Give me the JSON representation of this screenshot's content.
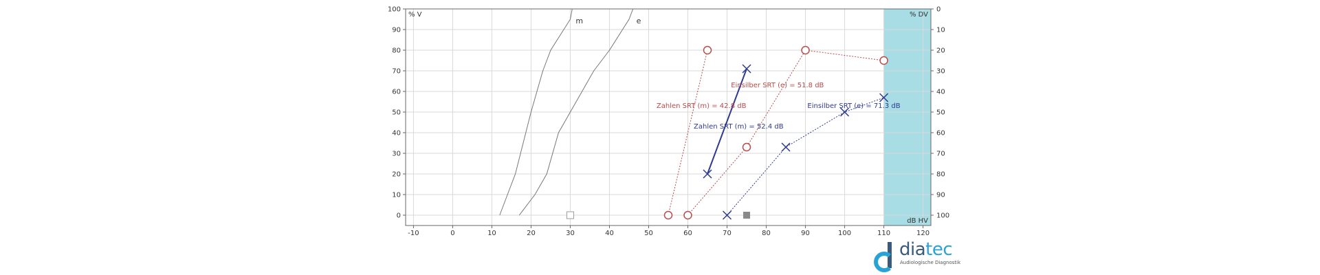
{
  "chart_data": {
    "type": "scatter",
    "title": "",
    "xlabel": "dB HV",
    "xlim": [
      -12,
      122
    ],
    "x_ticks": [
      -10,
      0,
      10,
      20,
      30,
      40,
      50,
      60,
      70,
      80,
      90,
      100,
      110,
      120
    ],
    "left_axis": {
      "label": "% V",
      "ylim": [
        -5,
        100
      ],
      "ticks": [
        0,
        10,
        20,
        30,
        40,
        50,
        60,
        70,
        80,
        90,
        100
      ]
    },
    "right_axis": {
      "label": "% DV",
      "ticks": [
        0,
        10,
        20,
        30,
        40,
        50,
        60,
        70,
        80,
        90,
        100
      ]
    },
    "grid": true,
    "shaded_region": {
      "x_from": 110,
      "x_to": 122,
      "color": "#a8dde6"
    },
    "reference_curves": [
      {
        "name": "m",
        "points": [
          [
            12,
            0
          ],
          [
            14,
            10
          ],
          [
            16,
            20
          ],
          [
            18,
            35
          ],
          [
            20,
            50
          ],
          [
            23,
            70
          ],
          [
            25,
            80
          ],
          [
            30,
            95
          ],
          [
            30.5,
            100
          ]
        ]
      },
      {
        "name": "e",
        "points": [
          [
            17,
            0
          ],
          [
            21,
            10
          ],
          [
            24,
            20
          ],
          [
            27,
            40
          ],
          [
            30,
            50
          ],
          [
            33,
            60
          ],
          [
            36,
            70
          ],
          [
            40,
            80
          ],
          [
            45,
            95
          ],
          [
            46,
            100
          ]
        ]
      }
    ],
    "series": [
      {
        "name": "Zahlen SRT (m) = 42.8 dB",
        "marker": "circle",
        "color": "#b84a4a",
        "line": "dotted",
        "points": [
          [
            55,
            0
          ],
          [
            65,
            80
          ]
        ]
      },
      {
        "name": "Einsilber SRT (e) = 51.8 dB",
        "marker": "circle",
        "color": "#b84a4a",
        "line": "dotted",
        "points": [
          [
            60,
            0
          ],
          [
            75,
            33
          ],
          [
            90,
            80
          ],
          [
            110,
            75
          ]
        ]
      },
      {
        "name": "Zahlen SRT (m) = 52.4 dB",
        "marker": "cross",
        "color": "#2e3a8c",
        "line": "solid",
        "points": [
          [
            65,
            20
          ],
          [
            75,
            71
          ]
        ]
      },
      {
        "name": "Einsilber SRT (e) = 71.3 dB",
        "marker": "cross",
        "color": "#2e3a8c",
        "line": "dotted",
        "points": [
          [
            70,
            0
          ],
          [
            85,
            33
          ],
          [
            100,
            50
          ],
          [
            110,
            57
          ]
        ]
      }
    ],
    "labels": [
      {
        "text": "Einsilber SRT (e) = 51.8 dB",
        "x": 71,
        "y": 62,
        "color": "#b84a4a"
      },
      {
        "text": "Zahlen SRT (m) = 42.8 dB",
        "x": 52,
        "y": 52,
        "color": "#b84a4a"
      },
      {
        "text": "Zahlen SRT (m) = 52.4 dB",
        "x": 61.5,
        "y": 42,
        "color": "#2e3a8c"
      },
      {
        "text": "Einsilber SRT (e) = 71.3 dB",
        "x": 90.5,
        "y": 52,
        "color": "#2e3a8c"
      }
    ],
    "symbols": [
      {
        "kind": "square-open",
        "x": 30,
        "y": 0,
        "color": "#9a9a9a"
      },
      {
        "kind": "square-filled",
        "x": 75,
        "y": 0,
        "color": "#8a8a8a"
      }
    ]
  },
  "logo": {
    "word_dark": "dia",
    "word_accent": "tec",
    "subtitle": "Audiologische Diagnostik"
  }
}
